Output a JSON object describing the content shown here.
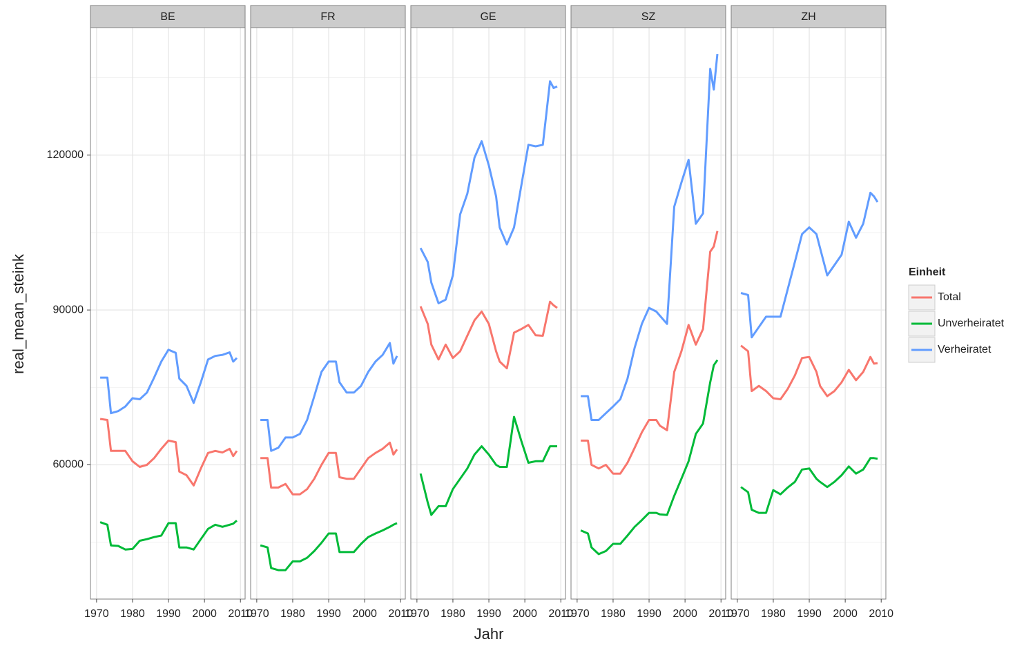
{
  "chart_data": {
    "type": "line",
    "x_label": "Jahr",
    "y_label": "real_mean_steink",
    "legend_title": "Einheit",
    "series": [
      {
        "name": "Total",
        "color": "#F8766D"
      },
      {
        "name": "Unverheiratet",
        "color": "#00BA38"
      },
      {
        "name": "Verheiratet",
        "color": "#619CFF"
      }
    ],
    "x": [
      1971,
      1973,
      1974,
      1976,
      1978,
      1980,
      1982,
      1984,
      1986,
      1988,
      1990,
      1992,
      1993,
      1995,
      1997,
      1999,
      2001,
      2003,
      2005,
      2007,
      2008,
      2009
    ],
    "xlim": [
      1968.3,
      2011.3
    ],
    "xticks": [
      1970,
      1980,
      1990,
      2000,
      2010
    ],
    "ylim": [
      34000,
      144700
    ],
    "yticks": [
      60000,
      90000,
      120000
    ],
    "minor_yticks": [
      45000,
      75000,
      105000,
      135000
    ],
    "grid": true,
    "facets": [
      {
        "title": "BE",
        "values": [
          [
            68900,
            68700,
            62700,
            62700,
            62700,
            60700,
            59600,
            60000,
            61300,
            63100,
            64700,
            64400,
            58700,
            58000,
            56000,
            59300,
            62300,
            62700,
            62400,
            63100,
            61700,
            62700
          ],
          [
            48900,
            48400,
            44400,
            44300,
            43600,
            43700,
            45300,
            45600,
            46000,
            46300,
            48700,
            48700,
            44000,
            44000,
            43600,
            45600,
            47600,
            48400,
            48000,
            48400,
            48600,
            49200
          ],
          [
            76900,
            76900,
            70000,
            70400,
            71300,
            72900,
            72700,
            74000,
            76900,
            80000,
            82300,
            81700,
            76700,
            75300,
            72000,
            76000,
            80400,
            81100,
            81300,
            81800,
            80000,
            80700
          ]
        ]
      },
      {
        "title": "FR",
        "values": [
          [
            61300,
            61300,
            55600,
            55600,
            56300,
            54300,
            54300,
            55300,
            57300,
            60000,
            62300,
            62300,
            57600,
            57300,
            57300,
            59300,
            61300,
            62300,
            63100,
            64300,
            62000,
            63000
          ],
          [
            44400,
            44000,
            40000,
            39600,
            39600,
            41300,
            41300,
            42000,
            43300,
            44900,
            46700,
            46700,
            43100,
            43100,
            43100,
            44700,
            46000,
            46700,
            47300,
            48000,
            48400,
            48700
          ],
          [
            68700,
            68700,
            62700,
            63300,
            65300,
            65300,
            66000,
            68700,
            73300,
            78000,
            80000,
            80000,
            76000,
            74000,
            74000,
            75300,
            78000,
            80000,
            81300,
            83600,
            79600,
            81100
          ]
        ]
      },
      {
        "title": "GE",
        "values": [
          [
            90700,
            87300,
            83300,
            80400,
            83300,
            80700,
            82000,
            85000,
            88000,
            89700,
            87300,
            82000,
            80000,
            78700,
            85600,
            86300,
            87100,
            85100,
            85000,
            91600,
            90900,
            90400
          ],
          [
            58300,
            52700,
            50300,
            52000,
            52000,
            55300,
            57300,
            59300,
            62000,
            63600,
            62000,
            60000,
            59600,
            59600,
            69300,
            64700,
            60400,
            60700,
            60700,
            63600,
            63600,
            63600
          ],
          [
            102000,
            99300,
            95300,
            91300,
            92000,
            96700,
            108500,
            112500,
            119500,
            122700,
            118000,
            112000,
            106000,
            102700,
            106000,
            114000,
            122000,
            121700,
            122000,
            134300,
            133000,
            133300
          ]
        ]
      },
      {
        "title": "SZ",
        "values": [
          [
            64700,
            64700,
            60000,
            59300,
            60000,
            58300,
            58300,
            60400,
            63300,
            66300,
            68700,
            68700,
            67600,
            66700,
            78000,
            82000,
            87100,
            83300,
            86300,
            101300,
            102300,
            105300
          ],
          [
            47300,
            46700,
            44000,
            42700,
            43300,
            44700,
            44700,
            46300,
            48000,
            49300,
            50700,
            50700,
            50400,
            50300,
            54000,
            57300,
            60700,
            66000,
            68000,
            76000,
            79300,
            80300
          ],
          [
            73300,
            73300,
            68700,
            68700,
            70000,
            71300,
            72700,
            76700,
            82700,
            87300,
            90400,
            89700,
            88900,
            87300,
            110000,
            114700,
            119100,
            106700,
            108700,
            136700,
            132700,
            139600
          ]
        ]
      },
      {
        "title": "ZH",
        "values": [
          [
            83100,
            82000,
            74300,
            75300,
            74300,
            72900,
            72700,
            74700,
            77300,
            80700,
            80900,
            78000,
            75300,
            73300,
            74300,
            76000,
            78400,
            76400,
            78000,
            80900,
            79600,
            79700
          ],
          [
            55700,
            54700,
            51300,
            50700,
            50700,
            55100,
            54300,
            55600,
            56700,
            59100,
            59300,
            57300,
            56700,
            55700,
            56700,
            58000,
            59700,
            58300,
            59100,
            61300,
            61300,
            61200
          ],
          [
            93300,
            92900,
            84700,
            86700,
            88700,
            88700,
            88700,
            94000,
            99300,
            104700,
            106000,
            104700,
            102000,
            96700,
            98700,
            100700,
            107100,
            104000,
            106700,
            112700,
            112000,
            110900
          ]
        ]
      }
    ]
  }
}
